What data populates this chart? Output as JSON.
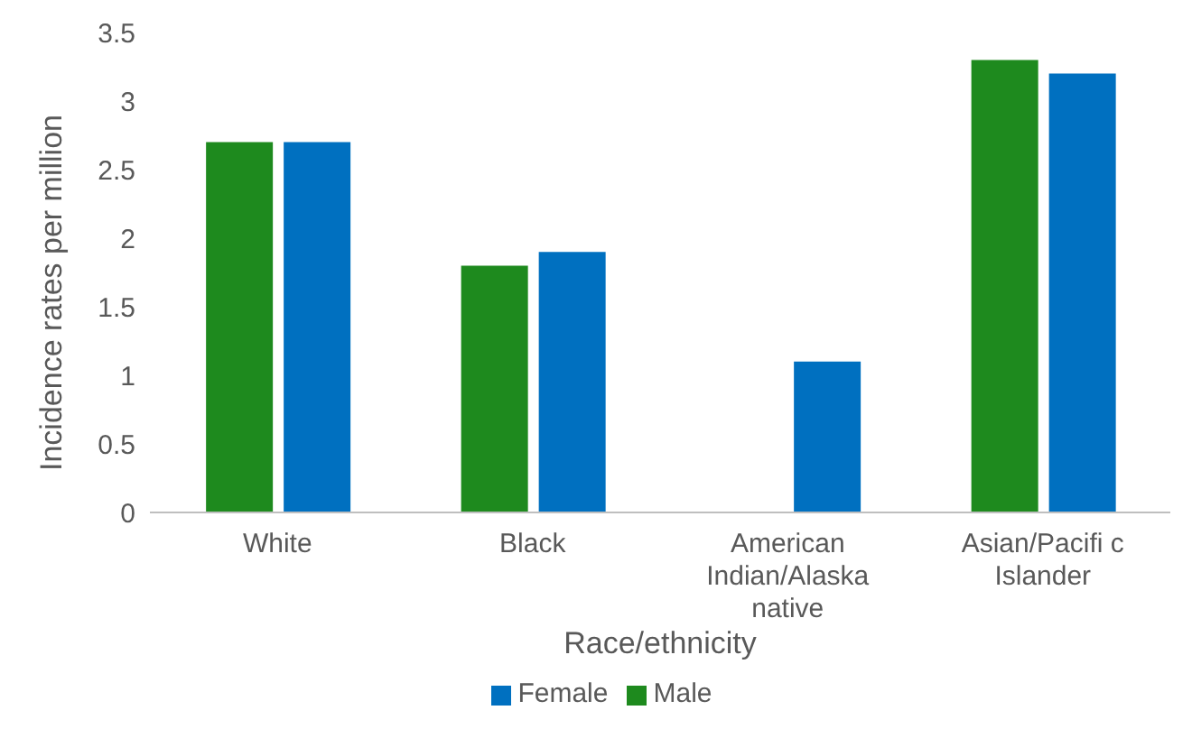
{
  "chart_data": {
    "type": "bar",
    "xlabel": "Race/ethnicity",
    "ylabel": "Incidence rates per million",
    "categories": [
      "White",
      "Black",
      "American Indian/Alaska native",
      "Asian/Pacifi c Islander"
    ],
    "series": [
      {
        "name": "Male",
        "color": "#1e8a1e",
        "values": [
          2.7,
          1.8,
          null,
          3.3
        ]
      },
      {
        "name": "Female",
        "color": "#0070c0",
        "values": [
          2.7,
          1.9,
          1.1,
          3.2
        ]
      }
    ],
    "ylim": [
      0,
      3.5
    ],
    "yticks": [
      0,
      0.5,
      1,
      1.5,
      2,
      2.5,
      3,
      3.5
    ],
    "grid": false,
    "legend": "bottom"
  }
}
